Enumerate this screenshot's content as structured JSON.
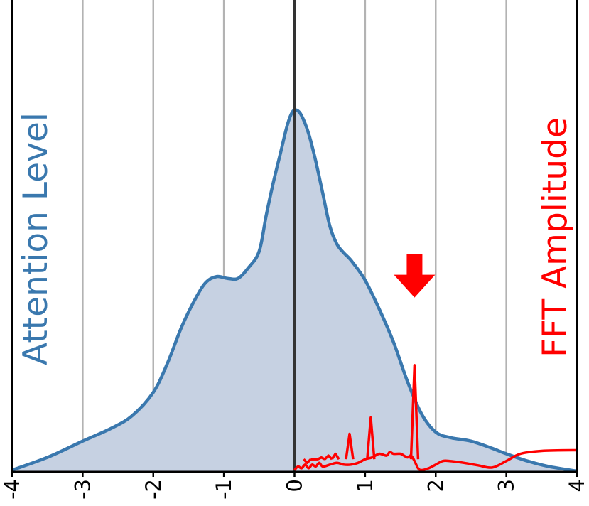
{
  "chart_data": {
    "type": "area",
    "xlim": [
      -4,
      4
    ],
    "x_ticks": [
      "-4",
      "-3",
      "-2",
      "-1",
      "0",
      "1",
      "2",
      "3",
      "4"
    ],
    "grid": "vertical",
    "vline_at": 0,
    "left_label": "Attention Level",
    "right_label": "FFT Amplitude",
    "colors": {
      "density_line": "#3a78ae",
      "density_fill": "#c6d1e2",
      "fft_line": "#ff0000",
      "arrow": "#ff0000",
      "grid": "#b3b3b3",
      "zero_line": "#333333",
      "frame": "#000000"
    },
    "series": [
      {
        "kind": "density",
        "x": [
          -4.0,
          -3.5,
          -3.0,
          -2.6,
          -2.3,
          -2.0,
          -1.8,
          -1.6,
          -1.4,
          -1.25,
          -1.1,
          -0.95,
          -0.8,
          -0.65,
          -0.5,
          -0.4,
          -0.3,
          -0.2,
          -0.1,
          -0.03,
          0.03,
          0.1,
          0.2,
          0.3,
          0.4,
          0.5,
          0.6,
          0.7,
          0.8,
          1.0,
          1.2,
          1.4,
          1.6,
          1.8,
          2.0,
          2.2,
          2.5,
          2.8,
          3.0,
          3.3,
          3.6,
          4.0
        ],
        "y": [
          0.005,
          0.04,
          0.085,
          0.12,
          0.155,
          0.22,
          0.3,
          0.4,
          0.48,
          0.525,
          0.54,
          0.535,
          0.535,
          0.565,
          0.61,
          0.71,
          0.8,
          0.88,
          0.96,
          0.995,
          1.0,
          0.985,
          0.935,
          0.86,
          0.77,
          0.68,
          0.63,
          0.605,
          0.585,
          0.53,
          0.45,
          0.36,
          0.25,
          0.16,
          0.11,
          0.095,
          0.085,
          0.065,
          0.05,
          0.03,
          0.015,
          0.002
        ]
      },
      {
        "kind": "fft",
        "x": [
          0.0,
          0.05,
          0.1,
          0.15,
          0.2,
          0.25,
          0.3,
          0.35,
          0.4,
          0.5,
          0.6,
          0.7,
          0.8,
          0.9,
          1.0,
          1.1,
          1.2,
          1.3,
          1.35,
          1.4,
          1.5,
          1.55,
          1.6,
          1.65,
          1.7,
          1.75,
          1.8,
          1.9,
          2.0,
          2.1,
          2.2,
          2.4,
          2.6,
          2.8,
          3.0,
          3.2,
          3.5,
          4.0
        ],
        "y": [
          0.005,
          0.015,
          0.01,
          0.02,
          0.01,
          0.02,
          0.015,
          0.025,
          0.015,
          0.02,
          0.025,
          0.02,
          0.02,
          0.025,
          0.035,
          0.04,
          0.05,
          0.045,
          0.055,
          0.05,
          0.05,
          0.045,
          0.04,
          0.045,
          0.03,
          0.01,
          0.005,
          0.01,
          0.02,
          0.03,
          0.03,
          0.025,
          0.018,
          0.012,
          0.03,
          0.05,
          0.058,
          0.06
        ]
      }
    ],
    "fft_spikes": [
      {
        "x": 0.18,
        "y": 0.025
      },
      {
        "x": 0.28,
        "y": 0.035
      },
      {
        "x": 0.38,
        "y": 0.04
      },
      {
        "x": 0.48,
        "y": 0.045
      },
      {
        "x": 0.58,
        "y": 0.05
      },
      {
        "x": 0.78,
        "y": 0.105
      },
      {
        "x": 1.08,
        "y": 0.15
      },
      {
        "x": 1.7,
        "y": 0.295
      }
    ],
    "annotations": [
      {
        "type": "arrow",
        "direction": "down",
        "x": 1.7,
        "y": 0.545
      }
    ]
  }
}
